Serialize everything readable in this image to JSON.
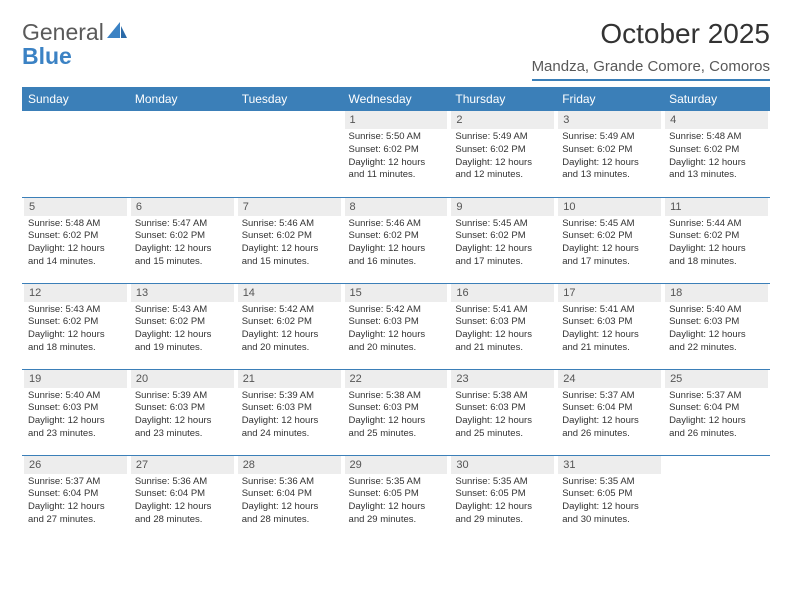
{
  "logo": {
    "text1": "General",
    "text2": "Blue"
  },
  "title": "October 2025",
  "location": "Mandza, Grande Comore, Comoros",
  "colors": {
    "header_bg": "#3b7fb8",
    "header_text": "#ffffff",
    "daynum_bg": "#ededed",
    "border": "#3b7fb8",
    "logo_blue": "#3b82c4"
  },
  "day_headers": [
    "Sunday",
    "Monday",
    "Tuesday",
    "Wednesday",
    "Thursday",
    "Friday",
    "Saturday"
  ],
  "weeks": [
    [
      null,
      null,
      null,
      {
        "n": "1",
        "sr": "5:50 AM",
        "ss": "6:02 PM",
        "dl": "12 hours and 11 minutes."
      },
      {
        "n": "2",
        "sr": "5:49 AM",
        "ss": "6:02 PM",
        "dl": "12 hours and 12 minutes."
      },
      {
        "n": "3",
        "sr": "5:49 AM",
        "ss": "6:02 PM",
        "dl": "12 hours and 13 minutes."
      },
      {
        "n": "4",
        "sr": "5:48 AM",
        "ss": "6:02 PM",
        "dl": "12 hours and 13 minutes."
      }
    ],
    [
      {
        "n": "5",
        "sr": "5:48 AM",
        "ss": "6:02 PM",
        "dl": "12 hours and 14 minutes."
      },
      {
        "n": "6",
        "sr": "5:47 AM",
        "ss": "6:02 PM",
        "dl": "12 hours and 15 minutes."
      },
      {
        "n": "7",
        "sr": "5:46 AM",
        "ss": "6:02 PM",
        "dl": "12 hours and 15 minutes."
      },
      {
        "n": "8",
        "sr": "5:46 AM",
        "ss": "6:02 PM",
        "dl": "12 hours and 16 minutes."
      },
      {
        "n": "9",
        "sr": "5:45 AM",
        "ss": "6:02 PM",
        "dl": "12 hours and 17 minutes."
      },
      {
        "n": "10",
        "sr": "5:45 AM",
        "ss": "6:02 PM",
        "dl": "12 hours and 17 minutes."
      },
      {
        "n": "11",
        "sr": "5:44 AM",
        "ss": "6:02 PM",
        "dl": "12 hours and 18 minutes."
      }
    ],
    [
      {
        "n": "12",
        "sr": "5:43 AM",
        "ss": "6:02 PM",
        "dl": "12 hours and 18 minutes."
      },
      {
        "n": "13",
        "sr": "5:43 AM",
        "ss": "6:02 PM",
        "dl": "12 hours and 19 minutes."
      },
      {
        "n": "14",
        "sr": "5:42 AM",
        "ss": "6:02 PM",
        "dl": "12 hours and 20 minutes."
      },
      {
        "n": "15",
        "sr": "5:42 AM",
        "ss": "6:03 PM",
        "dl": "12 hours and 20 minutes."
      },
      {
        "n": "16",
        "sr": "5:41 AM",
        "ss": "6:03 PM",
        "dl": "12 hours and 21 minutes."
      },
      {
        "n": "17",
        "sr": "5:41 AM",
        "ss": "6:03 PM",
        "dl": "12 hours and 21 minutes."
      },
      {
        "n": "18",
        "sr": "5:40 AM",
        "ss": "6:03 PM",
        "dl": "12 hours and 22 minutes."
      }
    ],
    [
      {
        "n": "19",
        "sr": "5:40 AM",
        "ss": "6:03 PM",
        "dl": "12 hours and 23 minutes."
      },
      {
        "n": "20",
        "sr": "5:39 AM",
        "ss": "6:03 PM",
        "dl": "12 hours and 23 minutes."
      },
      {
        "n": "21",
        "sr": "5:39 AM",
        "ss": "6:03 PM",
        "dl": "12 hours and 24 minutes."
      },
      {
        "n": "22",
        "sr": "5:38 AM",
        "ss": "6:03 PM",
        "dl": "12 hours and 25 minutes."
      },
      {
        "n": "23",
        "sr": "5:38 AM",
        "ss": "6:03 PM",
        "dl": "12 hours and 25 minutes."
      },
      {
        "n": "24",
        "sr": "5:37 AM",
        "ss": "6:04 PM",
        "dl": "12 hours and 26 minutes."
      },
      {
        "n": "25",
        "sr": "5:37 AM",
        "ss": "6:04 PM",
        "dl": "12 hours and 26 minutes."
      }
    ],
    [
      {
        "n": "26",
        "sr": "5:37 AM",
        "ss": "6:04 PM",
        "dl": "12 hours and 27 minutes."
      },
      {
        "n": "27",
        "sr": "5:36 AM",
        "ss": "6:04 PM",
        "dl": "12 hours and 28 minutes."
      },
      {
        "n": "28",
        "sr": "5:36 AM",
        "ss": "6:04 PM",
        "dl": "12 hours and 28 minutes."
      },
      {
        "n": "29",
        "sr": "5:35 AM",
        "ss": "6:05 PM",
        "dl": "12 hours and 29 minutes."
      },
      {
        "n": "30",
        "sr": "5:35 AM",
        "ss": "6:05 PM",
        "dl": "12 hours and 29 minutes."
      },
      {
        "n": "31",
        "sr": "5:35 AM",
        "ss": "6:05 PM",
        "dl": "12 hours and 30 minutes."
      },
      null
    ]
  ],
  "labels": {
    "sunrise": "Sunrise: ",
    "sunset": "Sunset: ",
    "daylight": "Daylight: "
  }
}
